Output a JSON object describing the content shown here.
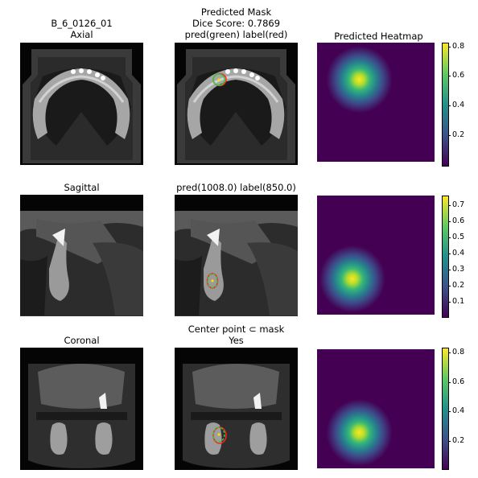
{
  "row1": {
    "ct_title": "B_6_0126_01",
    "ct_subtitle": "Axial",
    "mask_title": "Predicted Mask",
    "mask_dice": "Dice Score: 0.7869",
    "mask_legend": "pred(green) label(red)",
    "heatmap_title": "Predicted Heatmap",
    "colorbar_ticks": [
      "0.8",
      "0.6",
      "0.4",
      "0.2"
    ]
  },
  "row2": {
    "ct_title": "Sagittal",
    "mask_title": "pred(1008.0) label(850.0)",
    "colorbar_ticks": [
      "0.7",
      "0.6",
      "0.5",
      "0.4",
      "0.3",
      "0.2",
      "0.1"
    ]
  },
  "row3": {
    "ct_title": "Coronal",
    "mask_title": "Center point ⊂ mask",
    "mask_answer": "Yes",
    "colorbar_ticks": [
      "0.8",
      "0.6",
      "0.4",
      "0.2"
    ]
  },
  "colors": {
    "pred": "#2ecc40",
    "label": "#ff2020",
    "heat_low": "#440154",
    "heat_high": "#fde725"
  }
}
